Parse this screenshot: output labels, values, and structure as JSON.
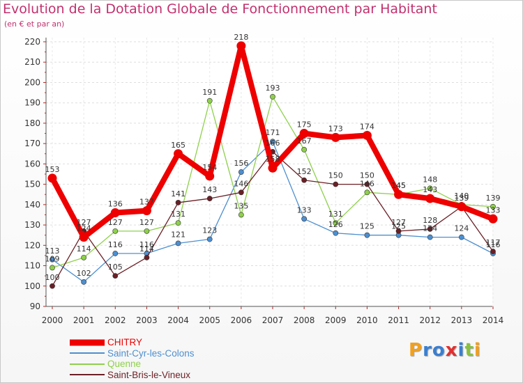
{
  "header": {
    "title": "Evolution de la Dotation Globale de Fonctionnement par Habitant",
    "subtitle": "(en € et par an)"
  },
  "brand": {
    "logo_text": "Proxiti",
    "letters": [
      {
        "ch": "P",
        "color": "#f0a020"
      },
      {
        "ch": "r",
        "color": "#3a7fd0"
      },
      {
        "ch": "o",
        "color": "#3a7fd0"
      },
      {
        "ch": "x",
        "color": "#e03030"
      },
      {
        "ch": "i",
        "color": "#3a7fd0"
      },
      {
        "ch": "t",
        "color": "#8ac040"
      },
      {
        "ch": "i",
        "color": "#f0a020"
      }
    ]
  },
  "chart_data": {
    "type": "line",
    "x": [
      "2000",
      "2001",
      "2002",
      "2003",
      "2004",
      "2005",
      "2006",
      "2007",
      "2008",
      "2009",
      "2010",
      "2011",
      "2012",
      "2013",
      "2014"
    ],
    "yticks": [
      90,
      100,
      110,
      120,
      130,
      140,
      150,
      160,
      170,
      180,
      190,
      200,
      210,
      220
    ],
    "ylim": [
      90,
      220
    ],
    "grid": true,
    "legend_position": "bottom-left",
    "series": [
      {
        "name": "Saint-Cyr-les-Colons",
        "color": "#4d8fcf",
        "values": [
          113,
          102,
          116,
          116,
          121,
          123,
          156,
          171,
          133,
          126,
          125,
          125,
          124,
          124,
          116
        ],
        "labels": [
          "113",
          "102",
          "116",
          "116",
          "121",
          "123",
          "156",
          "171",
          "133",
          "126",
          "125",
          "125",
          "124",
          "124",
          "116"
        ]
      },
      {
        "name": "Quenne",
        "color": "#8ed04a",
        "values": [
          109,
          114,
          127,
          127,
          131,
          191,
          135,
          193,
          167,
          131,
          146,
          145,
          148,
          140,
          139
        ],
        "labels": [
          "109",
          "114",
          "127",
          "127",
          "131",
          "191",
          "135",
          "193",
          "167",
          "131",
          "146",
          "145",
          "148",
          "140",
          "139"
        ]
      },
      {
        "name": "Saint-Bris-le-Vineux",
        "color": "#6b1f25",
        "values": [
          100,
          127,
          105,
          114,
          141,
          143,
          146,
          166,
          152,
          150,
          150,
          127,
          128,
          139,
          117
        ],
        "labels": [
          "100",
          "127",
          "105",
          "114",
          "141",
          "143",
          "146",
          "166",
          "152",
          "150",
          "150",
          "127",
          "128",
          "139",
          "117"
        ]
      },
      {
        "name": "CHITRY",
        "color": "#ee0000",
        "values": [
          153,
          124,
          136,
          137,
          165,
          154,
          218,
          158,
          175,
          173,
          174,
          145,
          143,
          139,
          133
        ],
        "labels": [
          "153",
          "124",
          "136",
          "137",
          "165",
          "154",
          "218",
          "158",
          "175",
          "173",
          "174",
          "145",
          "143",
          "139",
          "133"
        ]
      }
    ]
  }
}
